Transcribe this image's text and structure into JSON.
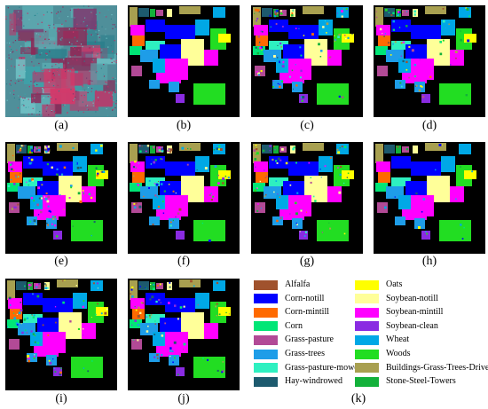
{
  "figure": {
    "panels": [
      {
        "id": "a",
        "caption": "(a)",
        "kind": "hyperspectral"
      },
      {
        "id": "b",
        "caption": "(b)",
        "kind": "ground-truth"
      },
      {
        "id": "c",
        "caption": "(c)",
        "kind": "classification-map"
      },
      {
        "id": "d",
        "caption": "(d)",
        "kind": "classification-map"
      },
      {
        "id": "e",
        "caption": "(e)",
        "kind": "classification-map"
      },
      {
        "id": "f",
        "caption": "(f)",
        "kind": "classification-map"
      },
      {
        "id": "g",
        "caption": "(g)",
        "kind": "classification-map"
      },
      {
        "id": "h",
        "caption": "(h)",
        "kind": "classification-map"
      },
      {
        "id": "i",
        "caption": "(i)",
        "kind": "classification-map"
      },
      {
        "id": "j",
        "caption": "(j)",
        "kind": "classification-map"
      }
    ],
    "legend_caption": "(k)",
    "legend": [
      {
        "label": "Alfalfa",
        "color": "#a0522d"
      },
      {
        "label": "Corn-notill",
        "color": "#0000ff"
      },
      {
        "label": "Corn-mintill",
        "color": "#ff6a00"
      },
      {
        "label": "Corn",
        "color": "#00e676"
      },
      {
        "label": "Grass-pasture",
        "color": "#b24a96"
      },
      {
        "label": "Grass-trees",
        "color": "#1e9de8"
      },
      {
        "label": "Grass-pasture-mowed",
        "color": "#2ef0c0"
      },
      {
        "label": "Hay-windrowed",
        "color": "#1d5a6e"
      },
      {
        "label": "Oats",
        "color": "#ffff00"
      },
      {
        "label": "Soybean-notill",
        "color": "#ffff99"
      },
      {
        "label": "Soybean-mintill",
        "color": "#ff00ff"
      },
      {
        "label": "Soybean-clean",
        "color": "#8a2be2"
      },
      {
        "label": "Wheat",
        "color": "#00a8e6"
      },
      {
        "label": "Woods",
        "color": "#22dd22"
      },
      {
        "label": "Buildings-Grass-Trees-Drives",
        "color": "#a8a050"
      },
      {
        "label": "Stone-Steel-Towers",
        "color": "#13b13a"
      }
    ]
  }
}
